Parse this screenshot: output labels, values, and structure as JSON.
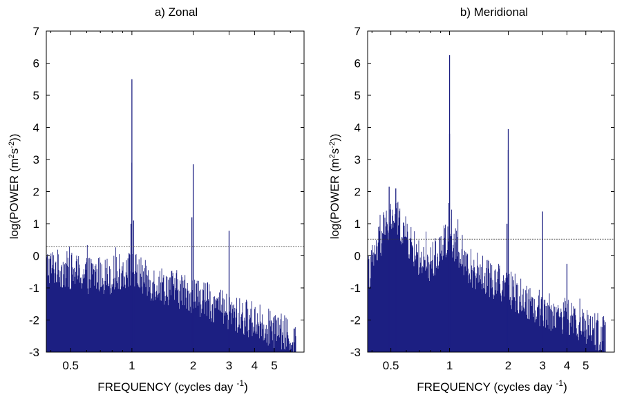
{
  "chart_data": [
    {
      "type": "bar",
      "title": "a) Zonal",
      "xlabel": "FREQUENCY (cycles day",
      "xlabel_sup": "-1",
      "xlabel_close": ")",
      "ylabel_pre": "log(POWER (m",
      "ylabel_sup1": "2",
      "ylabel_mid": "s",
      "ylabel_sup2": "-2",
      "ylabel_post": "))",
      "xscale": "log",
      "xlim": [
        0.38,
        7.0
      ],
      "ylim": [
        -3,
        7
      ],
      "xticks": [
        0.5,
        1,
        2,
        3,
        4,
        5
      ],
      "xtick_labels": [
        "0.5",
        "1",
        "2",
        "3",
        "4",
        "5"
      ],
      "yticks": [
        -3,
        -2,
        -1,
        0,
        1,
        2,
        3,
        4,
        5,
        6,
        7
      ],
      "ytick_labels": [
        "-3",
        "-2",
        "-1",
        "0",
        "1",
        "2",
        "3",
        "4",
        "5",
        "6",
        "7"
      ],
      "color": "#1c1f82",
      "threshold": 0.28,
      "f_max": 6.4,
      "noise_floor": [
        [
          0.38,
          -0.3
        ],
        [
          0.6,
          -0.6
        ],
        [
          0.8,
          -0.6
        ],
        [
          1.0,
          -0.4
        ],
        [
          1.2,
          -0.8
        ],
        [
          1.6,
          -1.0
        ],
        [
          2.0,
          -1.2
        ],
        [
          2.5,
          -1.5
        ],
        [
          3.0,
          -1.8
        ],
        [
          4.0,
          -2.0
        ],
        [
          5.0,
          -2.3
        ],
        [
          6.4,
          -2.6
        ]
      ],
      "spikes": [
        {
          "f": 1.0,
          "peak": 5.5
        },
        {
          "f": 1.0,
          "peak": 2.9
        },
        {
          "f": 2.0,
          "peak": 2.85
        },
        {
          "f": 1.97,
          "peak": 1.2
        },
        {
          "f": 3.0,
          "peak": 0.78
        },
        {
          "f": 0.99,
          "peak": 1.0
        },
        {
          "f": 1.02,
          "peak": 1.1
        }
      ]
    },
    {
      "type": "bar",
      "title": "b) Meridional",
      "xlabel": "FREQUENCY (cycles day",
      "xlabel_sup": "-1",
      "xlabel_close": ")",
      "ylabel_pre": "log(POWER (m",
      "ylabel_sup1": "2",
      "ylabel_mid": "s",
      "ylabel_sup2": "-2",
      "ylabel_post": "))",
      "xscale": "log",
      "xlim": [
        0.38,
        7.0
      ],
      "ylim": [
        -3,
        7
      ],
      "xticks": [
        0.5,
        1,
        2,
        3,
        4,
        5
      ],
      "xtick_labels": [
        "0.5",
        "1",
        "2",
        "3",
        "4",
        "5"
      ],
      "yticks": [
        -3,
        -2,
        -1,
        0,
        1,
        2,
        3,
        4,
        5,
        6,
        7
      ],
      "ytick_labels": [
        "-3",
        "-2",
        "-1",
        "0",
        "1",
        "2",
        "3",
        "4",
        "5",
        "6",
        "7"
      ],
      "color": "#1c1f82",
      "threshold": 0.52,
      "f_max": 6.4,
      "noise_floor": [
        [
          0.38,
          -0.6
        ],
        [
          0.45,
          0.6
        ],
        [
          0.52,
          1.3
        ],
        [
          0.6,
          0.6
        ],
        [
          0.75,
          -0.4
        ],
        [
          0.9,
          0.2
        ],
        [
          1.0,
          0.8
        ],
        [
          1.15,
          -0.2
        ],
        [
          1.5,
          -0.6
        ],
        [
          2.0,
          -1.0
        ],
        [
          2.5,
          -1.4
        ],
        [
          3.0,
          -1.7
        ],
        [
          4.0,
          -1.9
        ],
        [
          5.0,
          -2.2
        ],
        [
          6.4,
          -2.5
        ]
      ],
      "spikes": [
        {
          "f": 1.0,
          "peak": 6.25
        },
        {
          "f": 1.0,
          "peak": 3.8
        },
        {
          "f": 2.0,
          "peak": 3.95
        },
        {
          "f": 2.0,
          "peak": 3.3
        },
        {
          "f": 1.97,
          "peak": 1.0
        },
        {
          "f": 3.0,
          "peak": 1.38
        },
        {
          "f": 4.0,
          "peak": -0.25
        },
        {
          "f": 0.49,
          "peak": 2.15
        },
        {
          "f": 0.53,
          "peak": 2.1
        }
      ]
    }
  ]
}
